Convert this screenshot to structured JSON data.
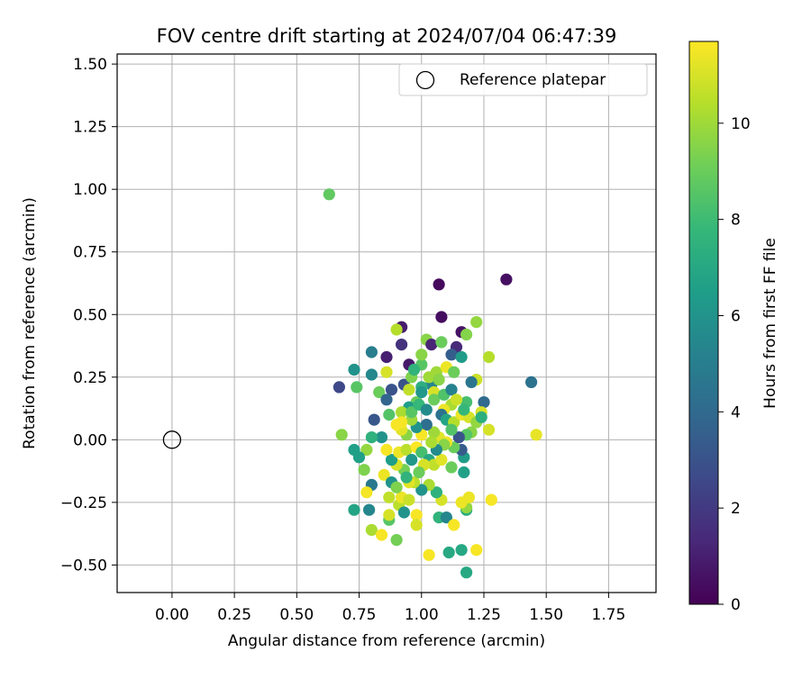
{
  "chart_data": {
    "type": "scatter",
    "title": "FOV centre drift starting at 2024/07/04 06:47:39",
    "xlabel": "Angular distance from reference (arcmin)",
    "ylabel": "Rotation from reference (arcmin)",
    "xlim": [
      -0.22,
      1.94
    ],
    "ylim": [
      -0.61,
      1.54
    ],
    "x_ticks": [
      0.0,
      0.25,
      0.5,
      0.75,
      1.0,
      1.25,
      1.5,
      1.75
    ],
    "x_tick_labels": [
      "0.00",
      "0.25",
      "0.50",
      "0.75",
      "1.00",
      "1.25",
      "1.50",
      "1.75"
    ],
    "y_ticks": [
      -0.5,
      -0.25,
      0.0,
      0.25,
      0.5,
      0.75,
      1.0,
      1.25,
      1.5
    ],
    "y_tick_labels": [
      "−0.50",
      "−0.25",
      "0.00",
      "0.25",
      "0.50",
      "0.75",
      "1.00",
      "1.25",
      "1.50"
    ],
    "grid": true,
    "legend": {
      "placement": "top-right",
      "entries": [
        "Reference platepar"
      ]
    },
    "reference_point": {
      "name": "Reference platepar",
      "x": 0.0,
      "y": 0.0
    },
    "colorbar": {
      "label": "Hours from first FF file",
      "range": [
        0,
        11.7
      ],
      "ticks": [
        0,
        2,
        4,
        6,
        8,
        10
      ],
      "tick_labels": [
        "0",
        "2",
        "4",
        "6",
        "8",
        "10"
      ],
      "colormap": [
        "#440154",
        "#482878",
        "#3e4989",
        "#31688e",
        "#26828e",
        "#1f9e89",
        "#35b779",
        "#6ece58",
        "#b5de2b",
        "#fde725"
      ]
    },
    "points": [
      [
        0.63,
        0.98,
        8.8
      ],
      [
        1.07,
        0.62,
        0.3
      ],
      [
        1.34,
        0.64,
        0.5
      ],
      [
        1.08,
        0.49,
        0.4
      ],
      [
        0.92,
        0.45,
        0.9
      ],
      [
        1.16,
        0.43,
        0.6
      ],
      [
        1.22,
        0.47,
        9.8
      ],
      [
        1.18,
        0.42,
        9.5
      ],
      [
        0.67,
        0.21,
        2.6
      ],
      [
        0.86,
        0.33,
        1.0
      ],
      [
        1.44,
        0.23,
        4.4
      ],
      [
        1.46,
        0.02,
        11.3
      ],
      [
        0.68,
        0.02,
        9.6
      ],
      [
        0.73,
        0.28,
        6.0
      ],
      [
        0.8,
        0.35,
        5.0
      ],
      [
        0.8,
        0.26,
        5.5
      ],
      [
        0.74,
        0.21,
        8.6
      ],
      [
        0.9,
        0.44,
        10.4
      ],
      [
        0.92,
        0.38,
        1.7
      ],
      [
        0.95,
        0.3,
        0.8
      ],
      [
        1.02,
        0.4,
        9.6
      ],
      [
        1.04,
        0.38,
        1.2
      ],
      [
        1.08,
        0.39,
        9.0
      ],
      [
        1.14,
        0.37,
        1.4
      ],
      [
        1.12,
        0.34,
        3.5
      ],
      [
        1.16,
        0.33,
        6.4
      ],
      [
        1.27,
        0.33,
        10.4
      ],
      [
        1.22,
        0.24,
        10.8
      ],
      [
        1.25,
        0.15,
        4.0
      ],
      [
        1.24,
        0.11,
        11.0
      ],
      [
        1.27,
        0.04,
        11.0
      ],
      [
        0.86,
        0.27,
        11.0
      ],
      [
        0.88,
        0.2,
        3.0
      ],
      [
        0.93,
        0.22,
        3.0
      ],
      [
        0.96,
        0.25,
        9.4
      ],
      [
        1.0,
        0.3,
        8.6
      ],
      [
        1.04,
        0.22,
        5.4
      ],
      [
        1.06,
        0.27,
        10.0
      ],
      [
        1.1,
        0.29,
        11.4
      ],
      [
        1.13,
        0.27,
        9.0
      ],
      [
        1.2,
        0.23,
        4.6
      ],
      [
        1.18,
        0.15,
        8.2
      ],
      [
        1.12,
        0.14,
        10.2
      ],
      [
        1.09,
        0.12,
        11.4
      ],
      [
        1.05,
        0.19,
        11.0
      ],
      [
        1.0,
        0.21,
        7.4
      ],
      [
        0.98,
        0.15,
        9.0
      ],
      [
        0.95,
        0.13,
        6.5
      ],
      [
        0.92,
        0.11,
        10.2
      ],
      [
        0.87,
        0.1,
        8.5
      ],
      [
        0.83,
        0.19,
        9.0
      ],
      [
        0.86,
        0.16,
        3.8
      ],
      [
        0.81,
        0.08,
        3.2
      ],
      [
        0.84,
        0.01,
        6.0
      ],
      [
        0.8,
        0.01,
        7.5
      ],
      [
        0.78,
        -0.04,
        9.8
      ],
      [
        0.75,
        -0.07,
        6.6
      ],
      [
        0.73,
        -0.04,
        6.6
      ],
      [
        0.77,
        -0.12,
        9.4
      ],
      [
        0.8,
        -0.18,
        4.7
      ],
      [
        0.78,
        -0.21,
        11.5
      ],
      [
        0.73,
        -0.28,
        6.8
      ],
      [
        0.79,
        -0.28,
        5.4
      ],
      [
        0.8,
        -0.36,
        10.2
      ],
      [
        0.84,
        -0.38,
        11.6
      ],
      [
        0.87,
        -0.32,
        8.6
      ],
      [
        0.87,
        -0.3,
        11.0
      ],
      [
        0.9,
        -0.4,
        9.2
      ],
      [
        0.91,
        -0.26,
        10.5
      ],
      [
        0.92,
        -0.23,
        11.4
      ],
      [
        0.93,
        -0.29,
        6.0
      ],
      [
        0.95,
        -0.24,
        10.8
      ],
      [
        0.98,
        -0.3,
        11.6
      ],
      [
        0.98,
        -0.34,
        11.0
      ],
      [
        1.03,
        -0.46,
        11.6
      ],
      [
        1.07,
        -0.31,
        7.6
      ],
      [
        1.1,
        -0.31,
        5.4
      ],
      [
        1.11,
        -0.45,
        7.0
      ],
      [
        1.13,
        -0.34,
        11.6
      ],
      [
        1.16,
        -0.44,
        7.0
      ],
      [
        1.18,
        -0.53,
        7.0
      ],
      [
        1.22,
        -0.44,
        11.6
      ],
      [
        1.18,
        -0.28,
        7.2
      ],
      [
        1.18,
        -0.27,
        9.8
      ],
      [
        1.16,
        -0.25,
        11.4
      ],
      [
        1.28,
        -0.24,
        11.6
      ],
      [
        1.19,
        -0.23,
        11.4
      ],
      [
        1.08,
        -0.24,
        11.0
      ],
      [
        1.06,
        -0.21,
        7.5
      ],
      [
        1.03,
        -0.18,
        10.2
      ],
      [
        1.0,
        -0.2,
        6.0
      ],
      [
        0.97,
        -0.17,
        10.5
      ],
      [
        0.95,
        -0.17,
        11.2
      ],
      [
        0.93,
        -0.12,
        9.2
      ],
      [
        0.9,
        -0.1,
        11.0
      ],
      [
        0.88,
        -0.08,
        6.5
      ],
      [
        0.85,
        -0.14,
        11.4
      ],
      [
        0.88,
        -0.17,
        6.0
      ],
      [
        0.86,
        -0.04,
        11.6
      ],
      [
        0.91,
        -0.05,
        11.4
      ],
      [
        0.94,
        -0.04,
        10.5
      ],
      [
        0.98,
        -0.03,
        11.8
      ],
      [
        1.0,
        -0.05,
        8.2
      ],
      [
        1.03,
        -0.08,
        7.0
      ],
      [
        1.05,
        -0.1,
        10.6
      ],
      [
        1.08,
        -0.08,
        11.2
      ],
      [
        1.12,
        -0.11,
        9.0
      ],
      [
        1.17,
        -0.07,
        6.4
      ],
      [
        1.17,
        -0.13,
        6.6
      ],
      [
        1.16,
        -0.04,
        3.4
      ],
      [
        1.13,
        -0.03,
        9.0
      ],
      [
        1.1,
        -0.01,
        11.4
      ],
      [
        1.07,
        0.01,
        11.2
      ],
      [
        1.05,
        0.03,
        10.0
      ],
      [
        1.02,
        0.06,
        4.2
      ],
      [
        1.0,
        0.02,
        11.6
      ],
      [
        0.98,
        0.05,
        6.0
      ],
      [
        0.96,
        0.08,
        10.0
      ],
      [
        0.94,
        0.02,
        9.6
      ],
      [
        0.92,
        0.04,
        11.2
      ],
      [
        0.9,
        0.06,
        11.6
      ],
      [
        0.92,
        0.07,
        11.6
      ],
      [
        0.96,
        0.11,
        8.6
      ],
      [
        0.99,
        0.14,
        7.8
      ],
      [
        1.02,
        0.12,
        5.6
      ],
      [
        1.05,
        0.16,
        9.0
      ],
      [
        1.08,
        0.1,
        4.4
      ],
      [
        1.1,
        0.08,
        6.8
      ],
      [
        1.13,
        0.07,
        10.4
      ],
      [
        1.16,
        0.1,
        11.4
      ],
      [
        1.19,
        0.09,
        11.0
      ],
      [
        1.2,
        0.03,
        9.6
      ],
      [
        1.18,
        0.02,
        8.6
      ],
      [
        1.15,
        0.01,
        3.0
      ],
      [
        1.12,
        0.04,
        8.5
      ],
      [
        1.09,
        -0.02,
        9.6
      ],
      [
        1.06,
        -0.04,
        5.6
      ],
      [
        1.04,
        -0.01,
        10.2
      ],
      [
        1.01,
        -0.1,
        11.0
      ],
      [
        0.99,
        -0.13,
        9.0
      ],
      [
        0.96,
        -0.08,
        6.2
      ],
      [
        0.94,
        -0.15,
        7.6
      ],
      [
        0.9,
        -0.19,
        9.4
      ],
      [
        0.87,
        -0.23,
        10.6
      ],
      [
        0.95,
        0.2,
        10.6
      ],
      [
        1.0,
        0.19,
        6.2
      ],
      [
        1.03,
        0.25,
        10.0
      ],
      [
        1.07,
        0.24,
        9.6
      ],
      [
        1.09,
        0.18,
        8.4
      ],
      [
        1.12,
        0.2,
        5.2
      ],
      [
        1.14,
        0.16,
        10.8
      ],
      [
        1.17,
        0.12,
        7.8
      ],
      [
        1.22,
        0.07,
        9.8
      ],
      [
        1.24,
        0.09,
        7.4
      ],
      [
        1.0,
        0.34,
        9.6
      ],
      [
        0.97,
        0.28,
        7.6
      ]
    ]
  }
}
